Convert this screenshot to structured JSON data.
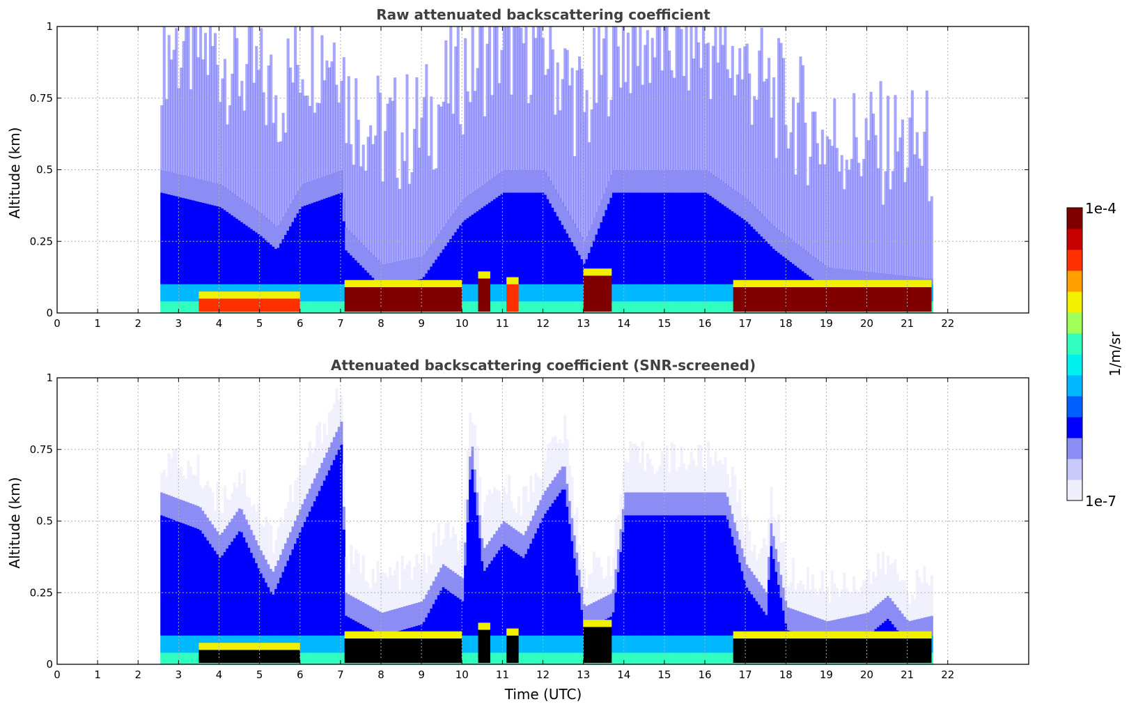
{
  "colors": {
    "jet": [
      "#eeeefd",
      "#c8c8fa",
      "#8c8cf5",
      "#0000ff",
      "#0060ff",
      "#00b8ff",
      "#00f0f0",
      "#30ffc0",
      "#a0ff58",
      "#f0f000",
      "#ffa000",
      "#ff3000",
      "#c80000",
      "#800000"
    ],
    "saturated": "#000000",
    "grid": "#b0b0b0",
    "title": "#404040"
  },
  "chart_data": [
    {
      "type": "heatmap",
      "title": "Raw attenuated backscattering coefficient",
      "ylabel": "Altitude (km)",
      "xlabel": "",
      "xlim": [
        0,
        24
      ],
      "ylim": [
        0,
        1
      ],
      "x_ticks": [
        "0",
        "1",
        "2",
        "3",
        "4",
        "5",
        "6",
        "7",
        "8",
        "9",
        "10",
        "11",
        "12",
        "13",
        "14",
        "15",
        "16",
        "17",
        "18",
        "19",
        "20",
        "21",
        "22"
      ],
      "y_ticks": [
        "0",
        "0.25",
        "0.5",
        "0.75",
        "1"
      ],
      "grid": true,
      "data_start_utc": 2.55,
      "data_end_utc": 21.6,
      "aerosol_layer_top_km": [
        [
          2.55,
          0.5
        ],
        [
          4.0,
          0.45
        ],
        [
          5.0,
          0.35
        ],
        [
          5.4,
          0.3
        ],
        [
          6.0,
          0.45
        ],
        [
          7.0,
          0.5
        ],
        [
          7.1,
          0.3
        ],
        [
          8.0,
          0.17
        ],
        [
          9.0,
          0.2
        ],
        [
          10.0,
          0.4
        ],
        [
          11.0,
          0.5
        ],
        [
          12.0,
          0.5
        ],
        [
          13.0,
          0.25
        ],
        [
          13.7,
          0.5
        ],
        [
          16.0,
          0.5
        ],
        [
          17.0,
          0.4
        ],
        [
          17.7,
          0.3
        ],
        [
          19.0,
          0.16
        ],
        [
          21.6,
          0.12
        ]
      ],
      "strong_layer_segments": [
        {
          "start": 3.5,
          "end": 6.0,
          "top_km": 0.05,
          "level": "high"
        },
        {
          "start": 7.1,
          "end": 10.0,
          "top_km": 0.09,
          "level": "saturated"
        },
        {
          "start": 10.4,
          "end": 10.7,
          "top_km": 0.12,
          "level": "saturated"
        },
        {
          "start": 11.1,
          "end": 11.4,
          "top_km": 0.1,
          "level": "high"
        },
        {
          "start": 13.0,
          "end": 13.7,
          "top_km": 0.13,
          "level": "saturated"
        },
        {
          "start": 16.7,
          "end": 21.6,
          "top_km": 0.09,
          "level": "saturated"
        }
      ]
    },
    {
      "type": "heatmap",
      "title": "Attenuated backscattering coefficient (SNR-screened)",
      "ylabel": "Altitude (km)",
      "xlabel": "Time (UTC)",
      "xlim": [
        0,
        24
      ],
      "ylim": [
        0,
        1
      ],
      "x_ticks": [
        "0",
        "1",
        "2",
        "3",
        "4",
        "5",
        "6",
        "7",
        "8",
        "9",
        "10",
        "11",
        "12",
        "13",
        "14",
        "15",
        "16",
        "17",
        "18",
        "19",
        "20",
        "21",
        "22"
      ],
      "y_ticks": [
        "0",
        "0.25",
        "0.5",
        "0.75",
        "1"
      ],
      "grid": true,
      "data_start_utc": 2.55,
      "data_end_utc": 21.6,
      "aerosol_layer_top_km": [
        [
          2.55,
          0.6
        ],
        [
          3.5,
          0.55
        ],
        [
          4.0,
          0.45
        ],
        [
          4.5,
          0.55
        ],
        [
          5.0,
          0.4
        ],
        [
          5.3,
          0.32
        ],
        [
          6.0,
          0.55
        ],
        [
          7.0,
          0.85
        ],
        [
          7.1,
          0.25
        ],
        [
          8.0,
          0.18
        ],
        [
          9.0,
          0.22
        ],
        [
          9.5,
          0.35
        ],
        [
          10.0,
          0.3
        ],
        [
          10.2,
          0.8
        ],
        [
          10.5,
          0.4
        ],
        [
          11.0,
          0.5
        ],
        [
          11.5,
          0.45
        ],
        [
          12.0,
          0.6
        ],
        [
          12.5,
          0.7
        ],
        [
          13.0,
          0.2
        ],
        [
          13.7,
          0.25
        ],
        [
          14.0,
          0.6
        ],
        [
          16.5,
          0.6
        ],
        [
          17.0,
          0.35
        ],
        [
          17.5,
          0.25
        ],
        [
          17.6,
          0.5
        ],
        [
          18.0,
          0.2
        ],
        [
          19.0,
          0.15
        ],
        [
          20.0,
          0.18
        ],
        [
          20.5,
          0.24
        ],
        [
          21.0,
          0.15
        ],
        [
          21.6,
          0.17
        ]
      ],
      "strong_layer_segments": [
        {
          "start": 3.5,
          "end": 6.0,
          "top_km": 0.05,
          "level": "saturated"
        },
        {
          "start": 7.1,
          "end": 10.0,
          "top_km": 0.09,
          "level": "saturated"
        },
        {
          "start": 10.4,
          "end": 10.7,
          "top_km": 0.12,
          "level": "saturated"
        },
        {
          "start": 11.1,
          "end": 11.4,
          "top_km": 0.1,
          "level": "saturated"
        },
        {
          "start": 13.0,
          "end": 13.7,
          "top_km": 0.13,
          "level": "saturated"
        },
        {
          "start": 16.7,
          "end": 21.6,
          "top_km": 0.09,
          "level": "saturated"
        }
      ]
    }
  ],
  "colorbar": {
    "max_label": "1e-4",
    "min_label": "1e-7",
    "unit_label": "1/m/sr"
  }
}
